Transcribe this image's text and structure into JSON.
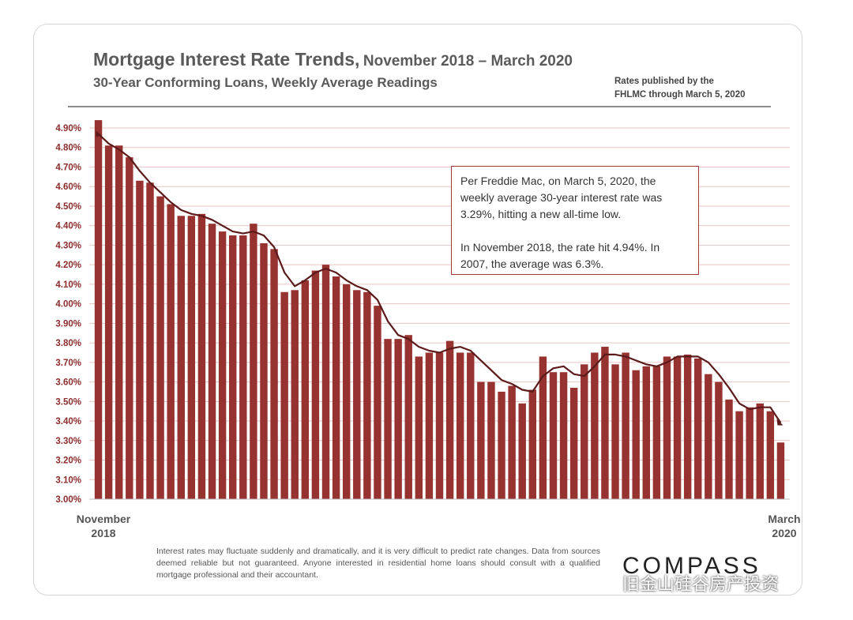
{
  "header": {
    "title": "Mortgage Interest Rate Trends,",
    "title_range": "November 2018 – March 2020",
    "subtitle": "30-Year Conforming Loans, Weekly Average Readings",
    "source_line1": "Rates published by the",
    "source_line2": "FHLMC through March 5, 2020"
  },
  "annotation": {
    "para1": "Per Freddie Mac, on March 5, 2020, the weekly average 30-year interest rate was 3.29%, hitting a new all-time low.",
    "para2": "In November 2018, the rate hit 4.94%. In 2007, the average was 6.3%."
  },
  "footer": {
    "disclaimer": "Interest rates may fluctuate suddenly and dramatically, and it is very difficult to predict rate changes. Data from sources deemed reliable but not guaranteed. Anyone interested in residential home loans should consult with a qualified mortgage professional and their accountant.",
    "logo": "COMPASS",
    "watermark": "旧金山硅谷房产投资"
  },
  "colors": {
    "bar": "#963330",
    "trend": "#5c1a1a",
    "grid": "#e8c4c4",
    "tick_text": "#8b2d2d"
  },
  "chart_data": {
    "type": "bar",
    "title": "Mortgage Interest Rate Trends, November 2018 – March 2020",
    "subtitle": "30-Year Conforming Loans, Weekly Average Readings",
    "x_start_label": "November\n2018",
    "x_end_label": "March\n2020",
    "ylim": [
      3.0,
      4.95
    ],
    "y_ticks": [
      "3.00%",
      "3.10%",
      "3.20%",
      "3.30%",
      "3.40%",
      "3.50%",
      "3.60%",
      "3.70%",
      "3.80%",
      "3.90%",
      "4.00%",
      "4.10%",
      "4.20%",
      "4.30%",
      "4.40%",
      "4.50%",
      "4.60%",
      "4.70%",
      "4.80%",
      "4.90%"
    ],
    "grid": true,
    "series": [
      {
        "type": "bar",
        "values": [
          4.94,
          4.81,
          4.81,
          4.75,
          4.63,
          4.62,
          4.55,
          4.51,
          4.45,
          4.45,
          4.46,
          4.41,
          4.37,
          4.35,
          4.35,
          4.41,
          4.31,
          4.28,
          4.06,
          4.07,
          4.12,
          4.17,
          4.2,
          4.14,
          4.1,
          4.07,
          4.06,
          3.99,
          3.82,
          3.82,
          3.84,
          3.73,
          3.75,
          3.75,
          3.81,
          3.75,
          3.75,
          3.6,
          3.6,
          3.55,
          3.58,
          3.49,
          3.56,
          3.73,
          3.65,
          3.65,
          3.57,
          3.69,
          3.75,
          3.78,
          3.69,
          3.75,
          3.66,
          3.68,
          3.68,
          3.73,
          3.73,
          3.74,
          3.72,
          3.64,
          3.6,
          3.51,
          3.45,
          3.47,
          3.49,
          3.45,
          3.29
        ]
      },
      {
        "type": "line",
        "values": [
          4.87,
          4.82,
          4.79,
          4.75,
          4.68,
          4.62,
          4.57,
          4.52,
          4.48,
          4.46,
          4.45,
          4.43,
          4.4,
          4.37,
          4.36,
          4.37,
          4.35,
          4.29,
          4.16,
          4.09,
          4.12,
          4.16,
          4.18,
          4.16,
          4.12,
          4.09,
          4.07,
          4.02,
          3.91,
          3.84,
          3.82,
          3.78,
          3.76,
          3.75,
          3.77,
          3.78,
          3.76,
          3.71,
          3.66,
          3.61,
          3.59,
          3.56,
          3.55,
          3.63,
          3.67,
          3.68,
          3.64,
          3.63,
          3.68,
          3.74,
          3.74,
          3.73,
          3.71,
          3.69,
          3.68,
          3.7,
          3.73,
          3.73,
          3.73,
          3.7,
          3.64,
          3.57,
          3.49,
          3.46,
          3.47,
          3.47,
          3.39
        ]
      }
    ]
  }
}
